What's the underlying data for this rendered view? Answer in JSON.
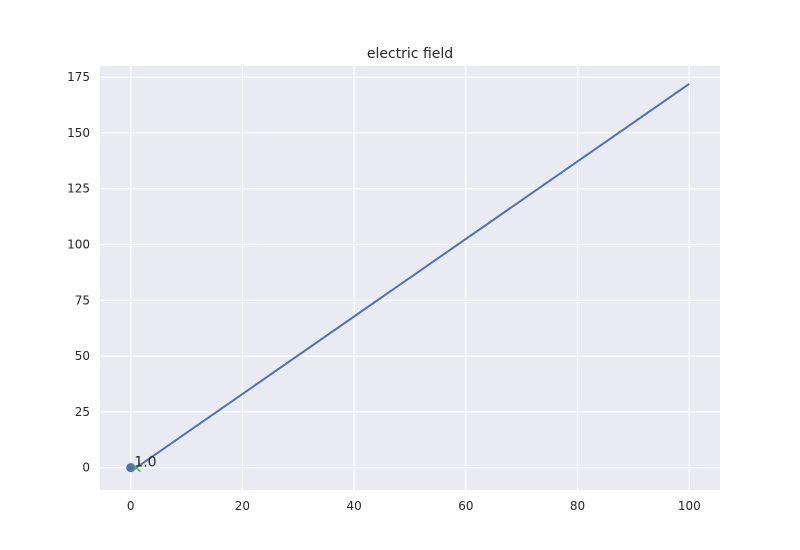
{
  "chart_data": {
    "type": "line",
    "title": "electric field",
    "xlabel": "",
    "ylabel": "",
    "xlim": [
      -5.5,
      105.5
    ],
    "ylim": [
      -10,
      180
    ],
    "xticks": [
      0,
      20,
      40,
      60,
      80,
      100
    ],
    "yticks": [
      0,
      25,
      50,
      75,
      100,
      125,
      150,
      175
    ],
    "grid": true,
    "series": [
      {
        "kind": "line",
        "color": "#4c72b0",
        "x": [
          1,
          100
        ],
        "y": [
          0,
          172
        ]
      },
      {
        "kind": "point",
        "marker": "circle",
        "color": "#4c72b0",
        "x": [
          0
        ],
        "y": [
          0
        ]
      },
      {
        "kind": "point",
        "marker": "x",
        "color": "#55a868",
        "x": [
          1
        ],
        "y": [
          0
        ]
      }
    ],
    "annotations": [
      {
        "text": "1.0",
        "x": 1,
        "y": 0
      }
    ]
  }
}
